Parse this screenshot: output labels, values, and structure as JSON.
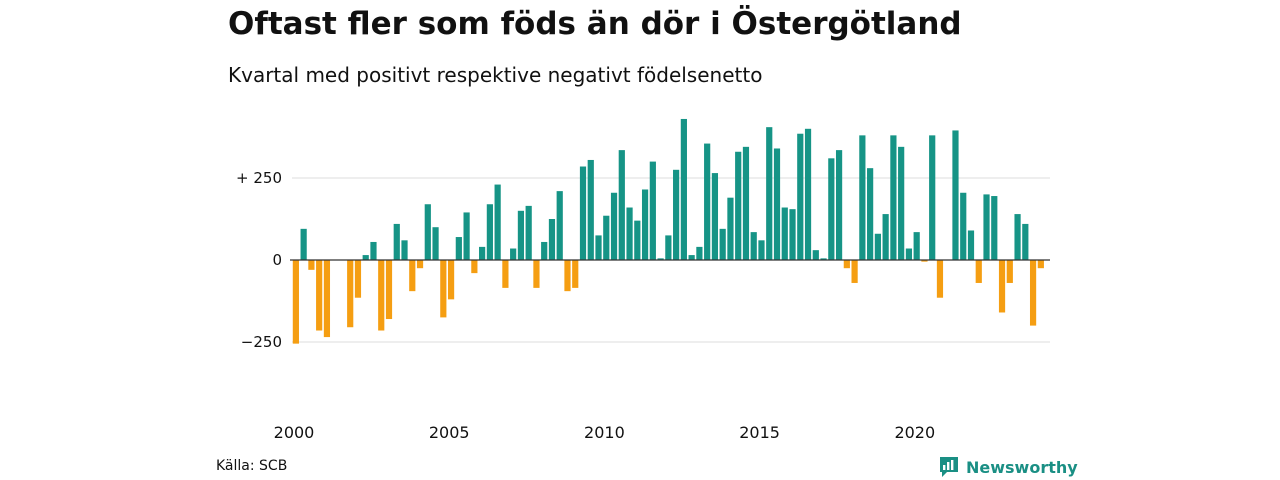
{
  "title": "Oftast fler som föds än dör i Östergötland",
  "subtitle": "Kvartal med positivt respektive negativt födelsenetto",
  "source": "Källa: SCB",
  "brand": "Newsworthy",
  "colors": {
    "positive": "#169486",
    "negative": "#f59e12",
    "grid": "#dddddd",
    "zero": "#333333",
    "brand": "#1a8f84"
  },
  "chart_data": {
    "type": "bar",
    "title": "Oftast fler som föds än dör i Östergötland",
    "subtitle": "Kvartal med positivt respektive negativt födelsenetto",
    "xlabel": "",
    "ylabel": "",
    "ylim": [
      -340,
      440
    ],
    "yticks": [
      {
        "value": 250,
        "label": "+ 250"
      },
      {
        "value": 0,
        "label": "0"
      },
      {
        "value": -250,
        "label": "−250"
      }
    ],
    "xticks": [
      {
        "value": 2000,
        "label": "2000"
      },
      {
        "value": 2005,
        "label": "2005"
      },
      {
        "value": 2010,
        "label": "2010"
      },
      {
        "value": 2015,
        "label": "2015"
      },
      {
        "value": 2020,
        "label": "2020"
      }
    ],
    "grid": true,
    "x_start": 2000,
    "quarters_per_year": 4,
    "values": [
      -255,
      95,
      -30,
      -215,
      -235,
      0,
      0,
      -205,
      -115,
      15,
      55,
      -215,
      -180,
      110,
      60,
      -95,
      -25,
      170,
      100,
      -175,
      -120,
      70,
      145,
      -40,
      40,
      170,
      230,
      -85,
      35,
      150,
      165,
      -85,
      55,
      125,
      210,
      -95,
      -85,
      285,
      305,
      75,
      135,
      205,
      335,
      160,
      120,
      215,
      300,
      5,
      75,
      275,
      430,
      15,
      40,
      355,
      265,
      95,
      190,
      330,
      345,
      85,
      60,
      405,
      340,
      160,
      155,
      385,
      400,
      30,
      5,
      310,
      335,
      -25,
      -70,
      380,
      280,
      80,
      140,
      380,
      345,
      35,
      85,
      -5,
      380,
      -115,
      0,
      395,
      205,
      90,
      -70,
      200,
      195,
      -160,
      -70,
      140,
      110,
      -200,
      -25
    ]
  }
}
